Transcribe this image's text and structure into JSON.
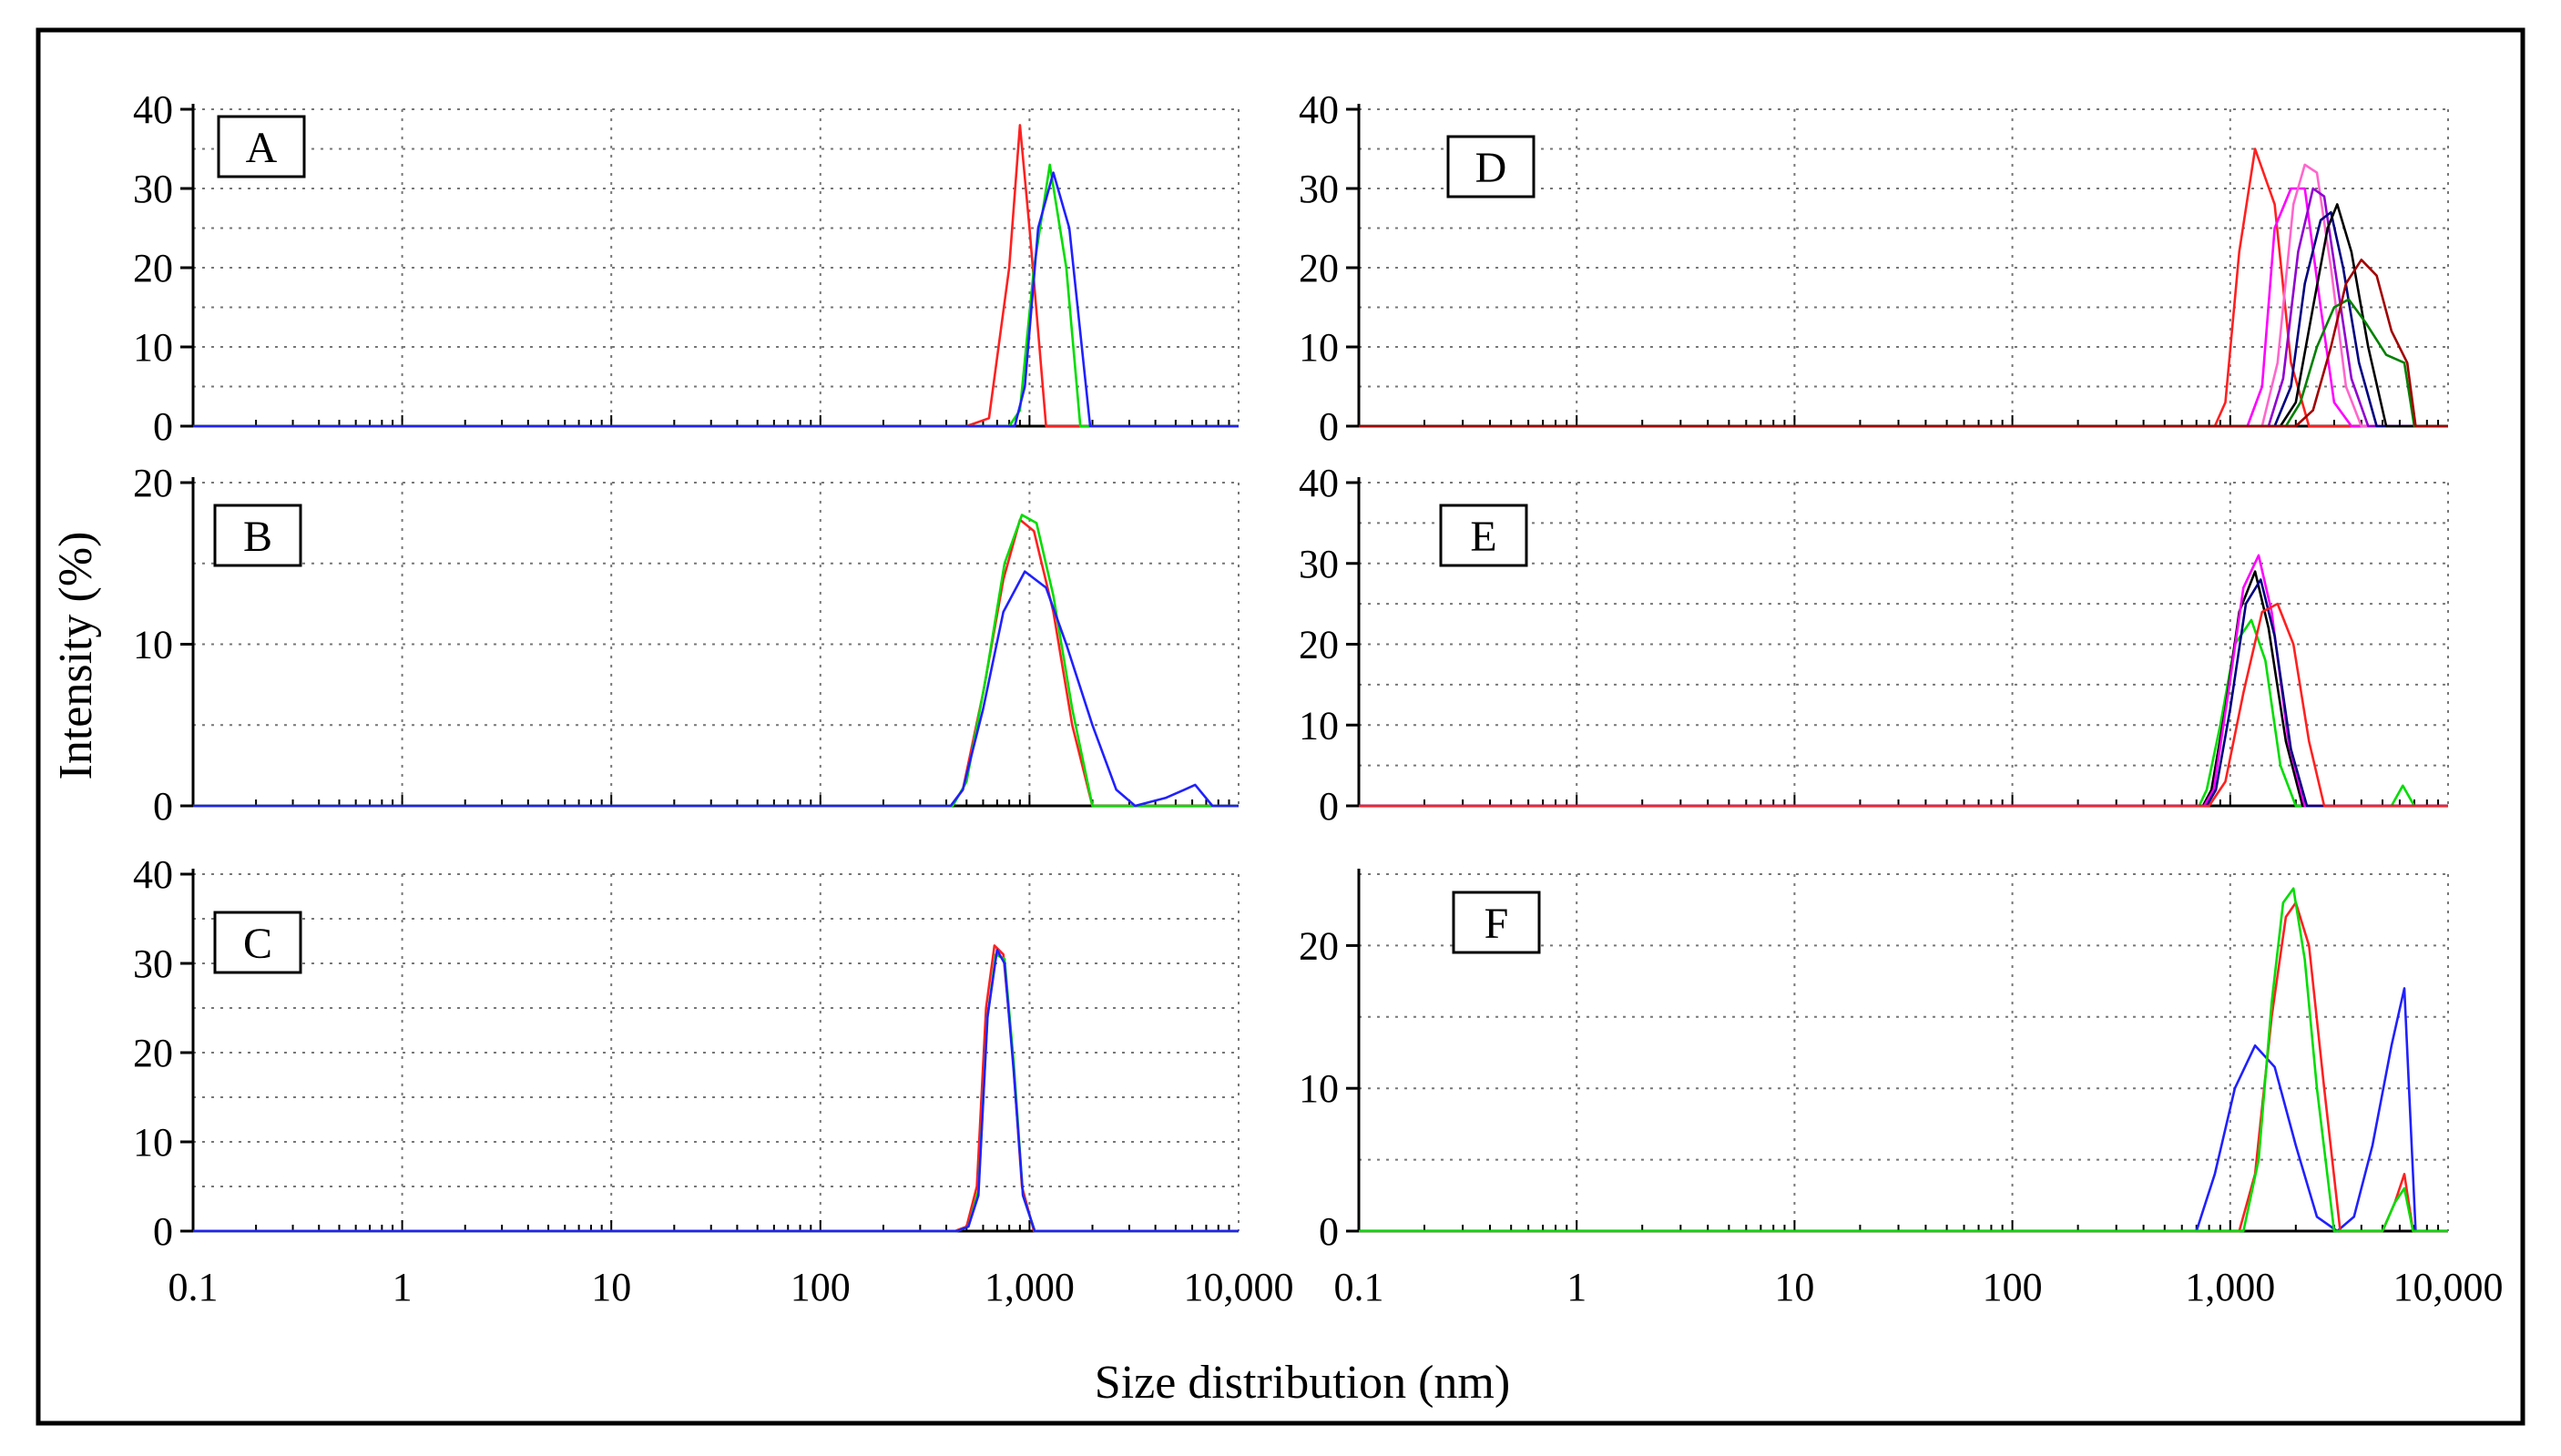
{
  "figure": {
    "ylabel": "Intensity (%)",
    "xlabel": "Size distribution (nm)"
  },
  "colors": {
    "red": "#ff2020",
    "green": "#00dd00",
    "blue": "#2020ff",
    "magenta": "#ff00ff",
    "black": "#000000",
    "darkred": "#a00000",
    "darkgreen": "#008000",
    "navy": "#000080",
    "purple": "#9000d0",
    "pink": "#ff66cc"
  },
  "chart_data": [
    {
      "type": "line",
      "panel": "A",
      "xscale": "log",
      "xlim": [
        0.1,
        10000
      ],
      "ylim": [
        0,
        40
      ],
      "yticks": [
        "0",
        "10",
        "20",
        "30",
        "40"
      ],
      "xticks": [
        "0.1",
        "1",
        "10",
        "100",
        "1,000",
        "10,000"
      ],
      "series": [
        {
          "name": "red",
          "color": "red",
          "x": [
            0.1,
            500,
            640,
            800,
            900,
            1000,
            1200,
            10000
          ],
          "y": [
            0,
            0,
            1,
            20,
            38,
            25,
            0,
            0
          ]
        },
        {
          "name": "green",
          "color": "green",
          "x": [
            0.1,
            800,
            900,
            1050,
            1250,
            1500,
            1750,
            10000
          ],
          "y": [
            0,
            0,
            2,
            20,
            33,
            20,
            0,
            0
          ]
        },
        {
          "name": "blue",
          "color": "blue",
          "x": [
            0.1,
            850,
            950,
            1100,
            1300,
            1550,
            1950,
            10000
          ],
          "y": [
            0,
            0,
            5,
            25,
            32,
            25,
            0,
            0
          ]
        }
      ]
    },
    {
      "type": "line",
      "panel": "B",
      "xscale": "log",
      "xlim": [
        0.1,
        10000
      ],
      "ylim": [
        0,
        20
      ],
      "yticks": [
        "0",
        "10",
        "20"
      ],
      "xticks": [
        "0.1",
        "1",
        "10",
        "100",
        "1,000",
        "10,000"
      ],
      "series": [
        {
          "name": "red",
          "color": "red",
          "x": [
            0.1,
            420,
            480,
            600,
            750,
            900,
            1050,
            1300,
            1600,
            2000,
            10000
          ],
          "y": [
            0,
            0,
            1,
            7,
            14,
            17.7,
            17,
            12,
            5,
            0,
            0
          ]
        },
        {
          "name": "green",
          "color": "green",
          "x": [
            0.1,
            430,
            500,
            620,
            760,
            920,
            1080,
            1300,
            1600,
            2000,
            10000
          ],
          "y": [
            0,
            0,
            1.5,
            8,
            15,
            18,
            17.5,
            13,
            6,
            0,
            0
          ]
        },
        {
          "name": "blue",
          "color": "blue",
          "x": [
            0.1,
            420,
            480,
            600,
            750,
            950,
            1200,
            1500,
            2000,
            2600,
            3200,
            4500,
            5500,
            6200,
            7500,
            10000
          ],
          "y": [
            0,
            0,
            1,
            6,
            12,
            14.5,
            13.5,
            10,
            5,
            1,
            0,
            0.5,
            1,
            1.3,
            0,
            0
          ]
        }
      ]
    },
    {
      "type": "line",
      "panel": "C",
      "xscale": "log",
      "xlim": [
        0.1,
        10000
      ],
      "ylim": [
        0,
        40
      ],
      "yticks": [
        "0",
        "10",
        "20",
        "30",
        "40"
      ],
      "xticks": [
        "0.1",
        "1",
        "10",
        "100",
        "1,000",
        "10,000"
      ],
      "series": [
        {
          "name": "red",
          "color": "red",
          "x": [
            0.1,
            440,
            500,
            560,
            620,
            680,
            750,
            830,
            920,
            1050,
            10000
          ],
          "y": [
            0,
            0,
            0.5,
            5,
            25,
            32,
            31,
            20,
            5,
            0,
            0
          ]
        },
        {
          "name": "green",
          "color": "green",
          "x": [
            0.1,
            450,
            510,
            570,
            630,
            690,
            760,
            840,
            930,
            1060,
            10000
          ],
          "y": [
            0,
            0,
            0.5,
            4.5,
            24,
            31,
            30.5,
            19,
            4,
            0,
            0
          ]
        },
        {
          "name": "blue",
          "color": "blue",
          "x": [
            0.1,
            450,
            510,
            570,
            630,
            700,
            760,
            840,
            930,
            1060,
            10000
          ],
          "y": [
            0,
            0,
            0.5,
            4,
            24,
            31.5,
            30,
            18,
            4,
            0,
            0
          ]
        }
      ]
    },
    {
      "type": "line",
      "panel": "D",
      "xscale": "log",
      "xlim": [
        0.1,
        10000
      ],
      "ylim": [
        0,
        40
      ],
      "yticks": [
        "0",
        "10",
        "20",
        "30",
        "40"
      ],
      "xticks": [
        "0.1",
        "1",
        "10",
        "100",
        "1,000",
        "10,000"
      ],
      "series": [
        {
          "name": "red",
          "color": "red",
          "x": [
            0.1,
            850,
            950,
            1100,
            1300,
            1600,
            1900,
            2300,
            10000
          ],
          "y": [
            0,
            0,
            3,
            22,
            35,
            28,
            8,
            0,
            0
          ]
        },
        {
          "name": "magenta",
          "color": "magenta",
          "x": [
            0.1,
            1200,
            1400,
            1600,
            1900,
            2200,
            2600,
            3000,
            3600,
            10000
          ],
          "y": [
            0,
            0,
            5,
            25,
            30,
            30,
            15,
            3,
            0,
            0
          ]
        },
        {
          "name": "pink",
          "color": "pink",
          "x": [
            0.1,
            1400,
            1650,
            1950,
            2200,
            2500,
            2900,
            3400,
            4000,
            10000
          ],
          "y": [
            0,
            0,
            8,
            28,
            33,
            32,
            20,
            5,
            0,
            0
          ]
        },
        {
          "name": "purple",
          "color": "purple",
          "x": [
            0.1,
            1500,
            1750,
            2050,
            2400,
            2700,
            3100,
            3600,
            4300,
            10000
          ],
          "y": [
            0,
            0,
            6,
            22,
            30,
            29,
            18,
            6,
            0,
            0
          ]
        },
        {
          "name": "navy",
          "color": "navy",
          "x": [
            0.1,
            1600,
            1900,
            2200,
            2600,
            2900,
            3300,
            3900,
            4700,
            10000
          ],
          "y": [
            0,
            0,
            5,
            18,
            26,
            27,
            20,
            8,
            0,
            0
          ]
        },
        {
          "name": "black",
          "color": "black",
          "x": [
            0.1,
            1700,
            2000,
            2400,
            2800,
            3100,
            3600,
            4300,
            5200,
            10000
          ],
          "y": [
            0,
            0,
            3,
            15,
            25,
            28,
            22,
            10,
            0,
            0
          ]
        },
        {
          "name": "darkgreen",
          "color": "darkgreen",
          "x": [
            0.1,
            1800,
            2100,
            2500,
            3000,
            3500,
            4200,
            5200,
            6300,
            7000,
            10000
          ],
          "y": [
            0,
            0,
            3,
            10,
            15,
            16,
            13,
            9,
            8,
            0,
            0
          ]
        },
        {
          "name": "darkred",
          "color": "darkred",
          "x": [
            0.1,
            2000,
            2400,
            2900,
            3400,
            4000,
            4700,
            5500,
            6500,
            7100,
            10000
          ],
          "y": [
            0,
            0,
            2,
            10,
            18,
            21,
            19,
            12,
            8,
            0,
            0
          ]
        }
      ]
    },
    {
      "type": "line",
      "panel": "E",
      "xscale": "log",
      "xlim": [
        0.1,
        10000
      ],
      "ylim": [
        0,
        40
      ],
      "yticks": [
        "0",
        "10",
        "20",
        "30",
        "40"
      ],
      "xticks": [
        "0.1",
        "1",
        "10",
        "100",
        "1,000",
        "10,000"
      ],
      "series": [
        {
          "name": "green",
          "color": "green",
          "x": [
            0.1,
            720,
            780,
            900,
            1050,
            1250,
            1450,
            1700,
            2000,
            5500,
            6200,
            7000,
            10000
          ],
          "y": [
            0,
            0,
            2,
            10,
            20,
            23,
            18,
            5,
            0,
            0,
            2.5,
            0,
            0
          ]
        },
        {
          "name": "black",
          "color": "black",
          "x": [
            0.1,
            750,
            820,
            950,
            1100,
            1300,
            1500,
            1800,
            2150,
            10000
          ],
          "y": [
            0,
            0,
            2,
            12,
            24,
            29,
            22,
            8,
            0,
            0
          ]
        },
        {
          "name": "magenta",
          "color": "magenta",
          "x": [
            0.1,
            760,
            840,
            980,
            1150,
            1350,
            1550,
            1850,
            2200,
            10000
          ],
          "y": [
            0,
            0,
            2,
            14,
            27,
            31,
            24,
            8,
            0,
            0
          ]
        },
        {
          "name": "navy",
          "color": "navy",
          "x": [
            0.1,
            780,
            860,
            1000,
            1180,
            1380,
            1600,
            1900,
            2250,
            10000
          ],
          "y": [
            0,
            0,
            2,
            12,
            25,
            28,
            21,
            7,
            0,
            0
          ]
        },
        {
          "name": "red",
          "color": "red",
          "x": [
            0.1,
            800,
            950,
            1150,
            1400,
            1650,
            1950,
            2300,
            2700,
            10000
          ],
          "y": [
            0,
            0,
            3,
            14,
            24,
            25,
            20,
            8,
            0,
            0
          ]
        }
      ]
    },
    {
      "type": "line",
      "panel": "F",
      "xscale": "log",
      "xlim": [
        0.1,
        10000
      ],
      "ylim": [
        0,
        25
      ],
      "yticks": [
        "0",
        "10",
        "20"
      ],
      "xticks": [
        "0.1",
        "1",
        "10",
        "100",
        "1,000",
        "10,000"
      ],
      "series": [
        {
          "name": "blue",
          "color": "blue",
          "x": [
            0.1,
            700,
            850,
            1050,
            1300,
            1600,
            2000,
            2500,
            3100,
            3700,
            4500,
            5500,
            6300,
            7100,
            10000
          ],
          "y": [
            0,
            0,
            4,
            10,
            13,
            11.5,
            6,
            1,
            0,
            1,
            6,
            13,
            17,
            0,
            0
          ]
        },
        {
          "name": "red",
          "color": "red",
          "x": [
            0.1,
            1100,
            1300,
            1550,
            1800,
            2000,
            2300,
            2700,
            3200,
            5000,
            5700,
            6300,
            6900,
            10000
          ],
          "y": [
            0,
            0,
            4,
            15,
            22,
            23,
            20,
            10,
            0,
            0,
            2,
            4,
            0,
            0
          ]
        },
        {
          "name": "green",
          "color": "green",
          "x": [
            0.1,
            1150,
            1350,
            1550,
            1750,
            1950,
            2200,
            2500,
            3000,
            5000,
            5700,
            6300,
            6900,
            10000
          ],
          "y": [
            0,
            0,
            5,
            16,
            23,
            24,
            19,
            10,
            0,
            0,
            2,
            3,
            0,
            0
          ]
        }
      ]
    }
  ]
}
